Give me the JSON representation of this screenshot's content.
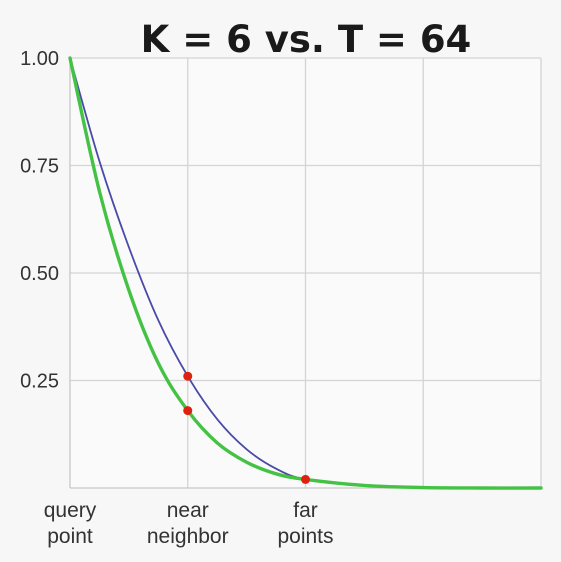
{
  "chart_data": {
    "type": "line",
    "title": "K = 6 vs. T = 64",
    "xlabel": "",
    "ylabel": "",
    "x_categories": [
      {
        "label_lines": [
          "query",
          "point"
        ]
      },
      {
        "label_lines": [
          "near",
          "neighbor"
        ]
      },
      {
        "label_lines": [
          "far",
          "points"
        ]
      }
    ],
    "xlim": [
      0,
      4
    ],
    "ylim": [
      0,
      1
    ],
    "y_ticks": [
      {
        "value": 0.25,
        "label": "0.25"
      },
      {
        "value": 0.5,
        "label": "0.50"
      },
      {
        "value": 0.75,
        "label": "0.75"
      },
      {
        "value": 1.0,
        "label": "1.00"
      }
    ],
    "grid": true,
    "series": [
      {
        "color": "#4a4aa8",
        "x": [
          0,
          0.25,
          0.5,
          0.75,
          1.0,
          1.25,
          1.5,
          1.75,
          2.0,
          2.5,
          3.0,
          3.5,
          4.0
        ],
        "y": [
          1.0,
          0.76,
          0.56,
          0.39,
          0.26,
          0.16,
          0.09,
          0.045,
          0.02,
          0.005,
          0.001,
          0.0,
          0.0
        ]
      },
      {
        "color": "#44c244",
        "x": [
          0,
          0.25,
          0.5,
          0.75,
          1.0,
          1.25,
          1.5,
          1.75,
          2.0,
          2.5,
          3.0,
          3.5,
          4.0
        ],
        "y": [
          1.0,
          0.69,
          0.46,
          0.29,
          0.18,
          0.105,
          0.06,
          0.033,
          0.02,
          0.006,
          0.001,
          0.0,
          0.0
        ]
      }
    ],
    "markers": {
      "color": "#dd2211",
      "points": [
        {
          "x": 1.0,
          "y": 0.26
        },
        {
          "x": 1.0,
          "y": 0.18
        },
        {
          "x": 2.0,
          "y": 0.02
        }
      ]
    }
  }
}
